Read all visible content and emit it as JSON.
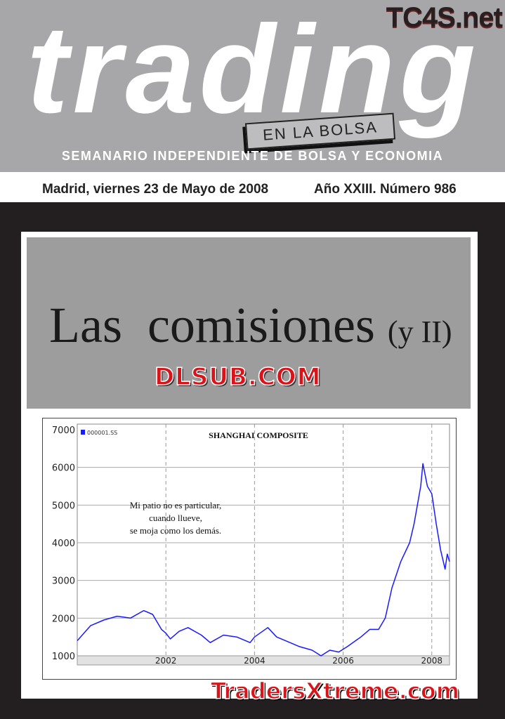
{
  "header": {
    "watermark_top": "TC4S.net",
    "masthead": "trading",
    "masthead_tag": "EN LA BOLSA",
    "subtitle": "SEMANARIO INDEPENDIENTE DE BOLSA Y ECONOMIA",
    "date": "Madrid, viernes 23 de Mayo de 2008",
    "issue": "Año XXIII. Número 986"
  },
  "cover": {
    "headline": "Las  comisiones",
    "headline_suffix": "(y II)",
    "watermark_middle": "DLSUB.COM",
    "watermark_bottom": "TradersXtreme.com"
  },
  "chart_data": {
    "type": "line",
    "title": "SHANGHAI COMPOSITE",
    "legend": "000001.SS",
    "legend_placement": "top-left",
    "series_color": "#1a1aff",
    "annotation": [
      "Mi patio no es particular,",
      "cuando llueve,",
      "se moja como los demás."
    ],
    "yticks": [
      1000,
      2000,
      3000,
      4000,
      5000,
      6000,
      7000
    ],
    "xticks": [
      "2002",
      "2004",
      "2006",
      "2008"
    ],
    "xlim": [
      2000.0,
      2008.4
    ],
    "ylim": [
      1000,
      7000
    ],
    "grid": true,
    "x": [
      2000.0,
      2000.3,
      2000.6,
      2000.9,
      2001.2,
      2001.5,
      2001.7,
      2001.9,
      2002.0,
      2002.1,
      2002.3,
      2002.5,
      2002.8,
      2003.0,
      2003.3,
      2003.6,
      2003.9,
      2004.0,
      2004.3,
      2004.5,
      2004.8,
      2005.0,
      2005.3,
      2005.5,
      2005.7,
      2005.9,
      2006.1,
      2006.4,
      2006.6,
      2006.8,
      2006.95,
      2007.1,
      2007.3,
      2007.5,
      2007.6,
      2007.75,
      2007.8,
      2007.9,
      2008.0,
      2008.1,
      2008.2,
      2008.3,
      2008.35,
      2008.4
    ],
    "y": [
      1400,
      1800,
      1950,
      2050,
      2000,
      2200,
      2100,
      1700,
      1600,
      1450,
      1650,
      1750,
      1550,
      1350,
      1550,
      1500,
      1350,
      1500,
      1750,
      1500,
      1350,
      1250,
      1150,
      1000,
      1150,
      1100,
      1250,
      1500,
      1700,
      1700,
      2000,
      2800,
      3500,
      4000,
      4500,
      5500,
      6100,
      5500,
      5300,
      4500,
      3800,
      3300,
      3700,
      3500
    ]
  }
}
